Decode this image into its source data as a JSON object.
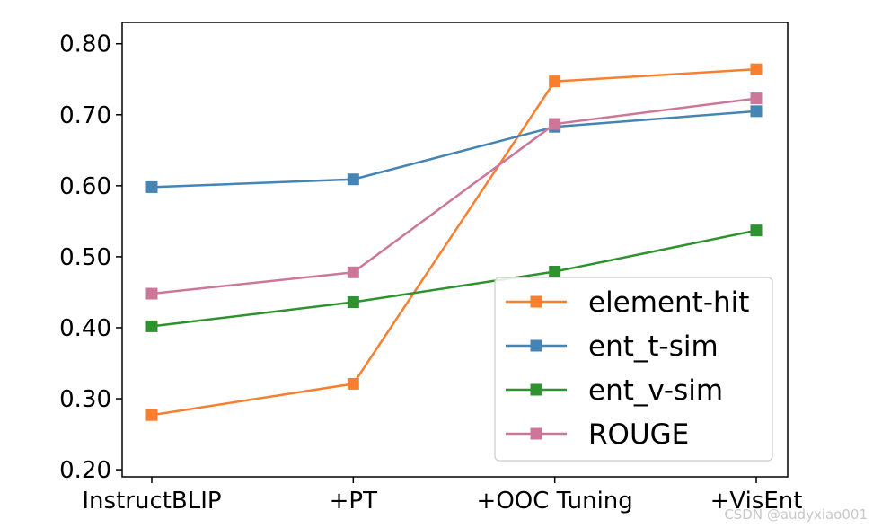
{
  "chart_data": {
    "type": "line",
    "title": "",
    "xlabel": "",
    "ylabel": "",
    "categories": [
      "InstructBLIP",
      "+PT",
      "+OOC Tuning",
      "+VisEnt"
    ],
    "ylim": [
      0.19,
      0.83
    ],
    "yticks": [
      0.2,
      0.3,
      0.4,
      0.5,
      0.6,
      0.7,
      0.8
    ],
    "ytick_labels": [
      "0.20",
      "0.30",
      "0.40",
      "0.50",
      "0.60",
      "0.70",
      "0.80"
    ],
    "grid": false,
    "legend_position": "lower-right",
    "series": [
      {
        "name": "element-hit",
        "color": "#f77f2e",
        "marker": "square",
        "values": [
          0.277,
          0.321,
          0.747,
          0.764
        ]
      },
      {
        "name": "ent_t-sim",
        "color": "#4585b6",
        "marker": "square",
        "values": [
          0.598,
          0.609,
          0.683,
          0.705
        ]
      },
      {
        "name": "ent_v-sim",
        "color": "#2e922e",
        "marker": "square",
        "values": [
          0.402,
          0.436,
          0.479,
          0.537
        ]
      },
      {
        "name": "ROUGE",
        "color": "#cc7799",
        "marker": "square",
        "values": [
          0.448,
          0.478,
          0.687,
          0.723
        ]
      }
    ]
  },
  "watermark": "CSDN @audyxiao001"
}
